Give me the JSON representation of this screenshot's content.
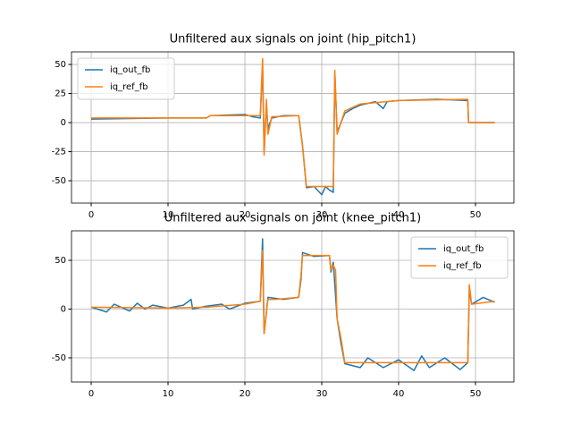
{
  "chart_data": [
    {
      "type": "line",
      "title": "Unfiltered aux signals on joint (hip_pitch1)",
      "xlim": [
        -2.56,
        55.0
      ],
      "ylim": [
        -69.2,
        60.8
      ],
      "xticks": [
        0,
        10,
        20,
        30,
        40,
        50
      ],
      "yticks": [
        -50,
        -25,
        0,
        25,
        50
      ],
      "grid": true,
      "legend": "upper-left",
      "series": [
        {
          "name": "iq_out_fb",
          "color": "#1f77b4",
          "x": [
            0,
            10,
            15,
            15.5,
            20,
            21,
            22,
            22.3,
            22.5,
            22.8,
            23,
            23.5,
            25,
            27,
            27.5,
            28,
            29,
            30,
            30.5,
            31,
            31.5,
            31.7,
            32,
            33,
            34,
            35,
            37,
            38,
            38.5,
            40,
            45,
            49,
            49.1,
            52.5
          ],
          "values": [
            3,
            4,
            4,
            6,
            7,
            5,
            4,
            50,
            -25,
            15,
            -5,
            4,
            6,
            6,
            -20,
            -56,
            -55,
            -62,
            -55,
            -58,
            -60,
            42,
            -8,
            8,
            12,
            15,
            18,
            12,
            18,
            19,
            20,
            19,
            0,
            0
          ]
        },
        {
          "name": "iq_ref_fb",
          "color": "#ff7f0e",
          "x": [
            0,
            15,
            15.5,
            22,
            22.3,
            22.5,
            22.8,
            23,
            23.5,
            27,
            27.5,
            28,
            31.5,
            31.7,
            32,
            33,
            35,
            40,
            49,
            49.1,
            52.5
          ],
          "values": [
            4,
            4,
            6,
            6,
            55,
            -28,
            20,
            -10,
            5,
            6,
            -20,
            -55,
            -55,
            45,
            -10,
            10,
            16,
            19,
            20,
            0,
            0
          ]
        }
      ]
    },
    {
      "type": "line",
      "title": "Unfiltered aux signals on joint (knee_pitch1)",
      "xlim": [
        -2.56,
        55.0
      ],
      "ylim": [
        -74.8,
        80.3
      ],
      "xticks": [
        0,
        10,
        20,
        30,
        40,
        50
      ],
      "yticks": [
        -50,
        0,
        50
      ],
      "grid": true,
      "legend": "upper-right",
      "series": [
        {
          "name": "iq_out_fb",
          "color": "#1f77b4",
          "x": [
            0,
            2,
            3,
            5,
            6,
            7,
            8,
            10,
            12,
            13,
            13.2,
            15,
            17,
            18,
            20,
            22,
            22.3,
            22.5,
            23,
            25,
            27,
            27.3,
            27.5,
            29,
            31,
            31.2,
            31.5,
            32,
            32.5,
            33,
            35,
            36,
            38,
            40,
            42,
            43,
            44,
            46,
            48,
            49,
            49.2,
            49.5,
            51,
            52.5
          ],
          "values": [
            2,
            -3,
            5,
            -2,
            6,
            0,
            4,
            1,
            4,
            10,
            0,
            3,
            5,
            0,
            6,
            8,
            72,
            -25,
            12,
            10,
            12,
            30,
            58,
            54,
            55,
            38,
            48,
            -10,
            -35,
            -56,
            -60,
            -50,
            -60,
            -52,
            -63,
            -48,
            -60,
            -50,
            -62,
            -55,
            20,
            5,
            12,
            7
          ]
        },
        {
          "name": "iq_ref_fb",
          "color": "#ff7f0e",
          "x": [
            0,
            10,
            15,
            20,
            22,
            22.3,
            22.5,
            23,
            24,
            27,
            27.3,
            27.5,
            31,
            31.2,
            31.5,
            31.8,
            32,
            32.5,
            33,
            40,
            49,
            49.2,
            49.5,
            52.5
          ],
          "values": [
            2,
            1,
            2,
            5,
            8,
            60,
            -25,
            10,
            10,
            12,
            35,
            55,
            55,
            40,
            45,
            40,
            -10,
            -30,
            -55,
            -55,
            -55,
            25,
            5,
            8
          ]
        }
      ]
    }
  ]
}
